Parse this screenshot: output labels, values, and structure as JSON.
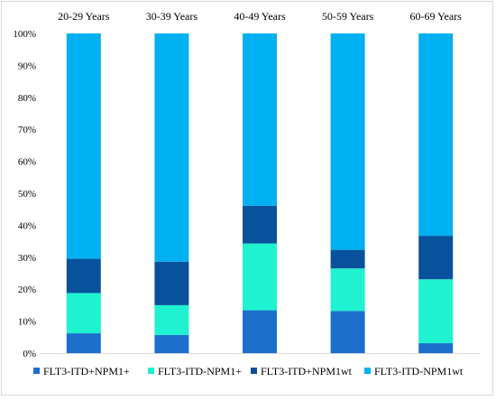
{
  "chart_data": {
    "type": "bar",
    "stacked": true,
    "percent_stacked": true,
    "categories": [
      "20-29 Years",
      "30-39 Years",
      "40-49 Years",
      "50-59 Years",
      "60-69 Years"
    ],
    "series": [
      {
        "name": "FLT3-ITD+NPM1+",
        "color": "#1d6fcc",
        "values": [
          6.2,
          5.7,
          13.4,
          13.2,
          3.1
        ]
      },
      {
        "name": "FLT3-ITD-NPM1+",
        "color": "#1ef2d0",
        "values": [
          12.6,
          9.3,
          20.9,
          13.3,
          20.0
        ]
      },
      {
        "name": "FLT3-ITD+NPM1wt",
        "color": "#08519c",
        "values": [
          10.7,
          13.6,
          11.8,
          5.8,
          13.6
        ]
      },
      {
        "name": "FLT3-ITD-NPM1wt",
        "color": "#00b0f0",
        "values": [
          70.5,
          71.4,
          53.9,
          67.7,
          63.3
        ]
      }
    ],
    "yticks": [
      "0%",
      "10%",
      "20%",
      "30%",
      "40%",
      "50%",
      "60%",
      "70%",
      "80%",
      "90%",
      "100%"
    ],
    "ylim": [
      0,
      100
    ],
    "grid": false,
    "category_labels_position": "top",
    "legend_position": "bottom",
    "title": "",
    "xlabel": "",
    "ylabel": ""
  }
}
